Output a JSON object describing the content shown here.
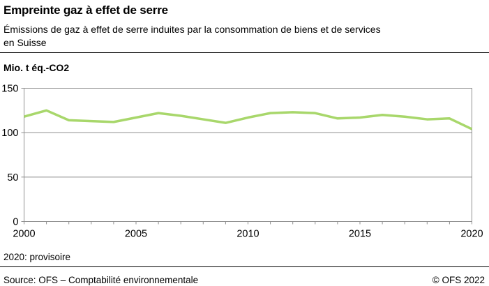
{
  "header": {
    "title": "Empreinte gaz à effet de serre",
    "subtitle_lines": [
      "Émissions de gaz à effet de serre induites par la consommation de biens et de services",
      "en Suisse"
    ]
  },
  "chart_data": {
    "type": "line",
    "title": "Empreinte gaz à effet de serre",
    "unit_label": "Mio. t éq.-CO2",
    "xlabel": "",
    "ylabel": "Mio. t éq.-CO2",
    "x": [
      2000,
      2001,
      2002,
      2003,
      2004,
      2005,
      2006,
      2007,
      2008,
      2009,
      2010,
      2011,
      2012,
      2013,
      2014,
      2015,
      2016,
      2017,
      2018,
      2019,
      2020
    ],
    "series": [
      {
        "name": "Empreinte gaz à effet de serre",
        "values": [
          118,
          125,
          114,
          113,
          112,
          117,
          122,
          119,
          115,
          111,
          117,
          122,
          123,
          122,
          116,
          117,
          120,
          118,
          115,
          116,
          104
        ],
        "color": "#a8d76b"
      }
    ],
    "xlim": [
      2000,
      2020
    ],
    "ylim": [
      0,
      150
    ],
    "y_ticks": [
      0,
      50,
      100,
      150
    ],
    "x_tick_labels": [
      "2000",
      "2005",
      "2010",
      "2015",
      "2020"
    ],
    "x_minor_tick_interval": 1,
    "grid": "horizontal",
    "legend": "none",
    "axis_color": "#8f8f8f",
    "tick_label_color": "#000000",
    "line_width": 3.5
  },
  "footer": {
    "note": "2020: provisoire",
    "source": "Source: OFS – Comptabilité environnementale",
    "copyright": "© OFS 2022"
  }
}
